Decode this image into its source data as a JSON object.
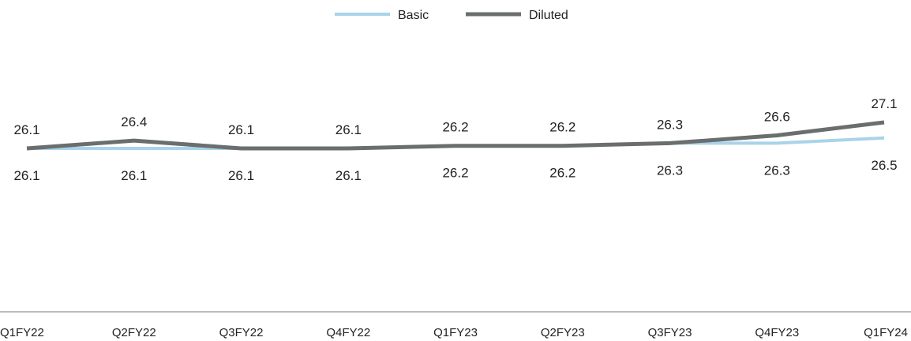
{
  "chart_data": {
    "type": "line",
    "categories": [
      "Q1FY22",
      "Q2FY22",
      "Q3FY22",
      "Q4FY22",
      "Q1FY23",
      "Q2FY23",
      "Q3FY23",
      "Q4FY23",
      "Q1FY24"
    ],
    "series": [
      {
        "name": "Basic",
        "color": "#a9d3ea",
        "values": [
          26.1,
          26.1,
          26.1,
          26.1,
          26.2,
          26.2,
          26.3,
          26.3,
          26.5
        ]
      },
      {
        "name": "Diluted",
        "color": "#6b6e6e",
        "values": [
          26.1,
          26.4,
          26.1,
          26.1,
          26.2,
          26.2,
          26.3,
          26.6,
          27.1
        ]
      }
    ],
    "legend_position": "top-center",
    "grid": false,
    "axis_color": "#a6a6a6"
  }
}
